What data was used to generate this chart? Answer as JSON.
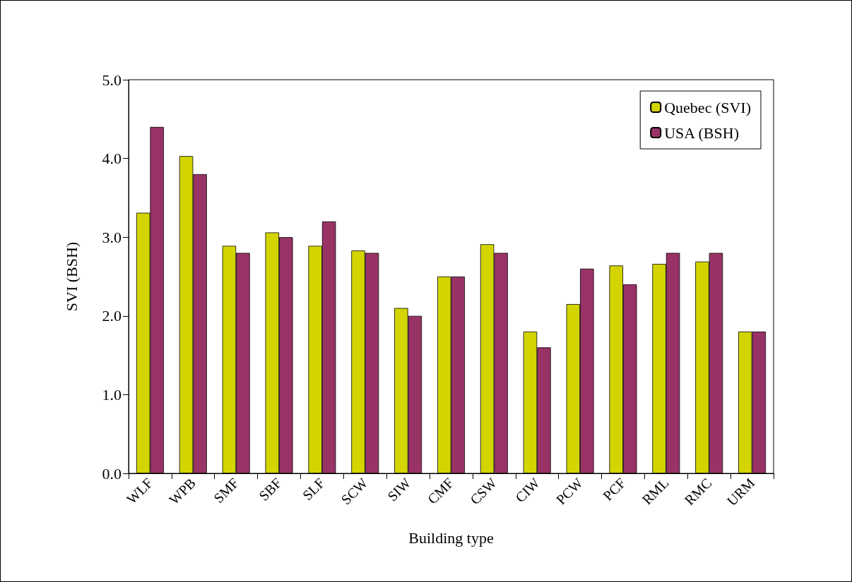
{
  "chart_data": {
    "type": "bar",
    "xlabel": "Building type",
    "ylabel": "SVI (BSH)",
    "categories": [
      "WLF",
      "WPB",
      "SMF",
      "SBF",
      "SLF",
      "SCW",
      "SIW",
      "CMF",
      "CSW",
      "CIW",
      "PCW",
      "PCF",
      "RML",
      "RMC",
      "URM"
    ],
    "series": [
      {
        "name": "Quebec (SVI)",
        "color": "#d4d400",
        "values": [
          3.31,
          4.03,
          2.89,
          3.06,
          2.89,
          2.83,
          2.1,
          2.5,
          2.91,
          1.8,
          2.15,
          2.64,
          2.66,
          2.69,
          1.8
        ]
      },
      {
        "name": "USA (BSH)",
        "color": "#993366",
        "values": [
          4.4,
          3.8,
          2.8,
          3.0,
          3.2,
          2.8,
          2.0,
          2.5,
          2.8,
          1.6,
          2.6,
          2.4,
          2.8,
          2.8,
          1.8
        ]
      }
    ],
    "ylim": [
      0,
      5
    ],
    "yticks": [
      {
        "value": 0,
        "label": "0.0"
      },
      {
        "value": 1,
        "label": "1.0"
      },
      {
        "value": 2,
        "label": "2.0"
      },
      {
        "value": 3,
        "label": "3.0"
      },
      {
        "value": 4,
        "label": "4.0"
      },
      {
        "value": 5,
        "label": "5.0"
      }
    ],
    "grid": false,
    "legend": "top right"
  }
}
